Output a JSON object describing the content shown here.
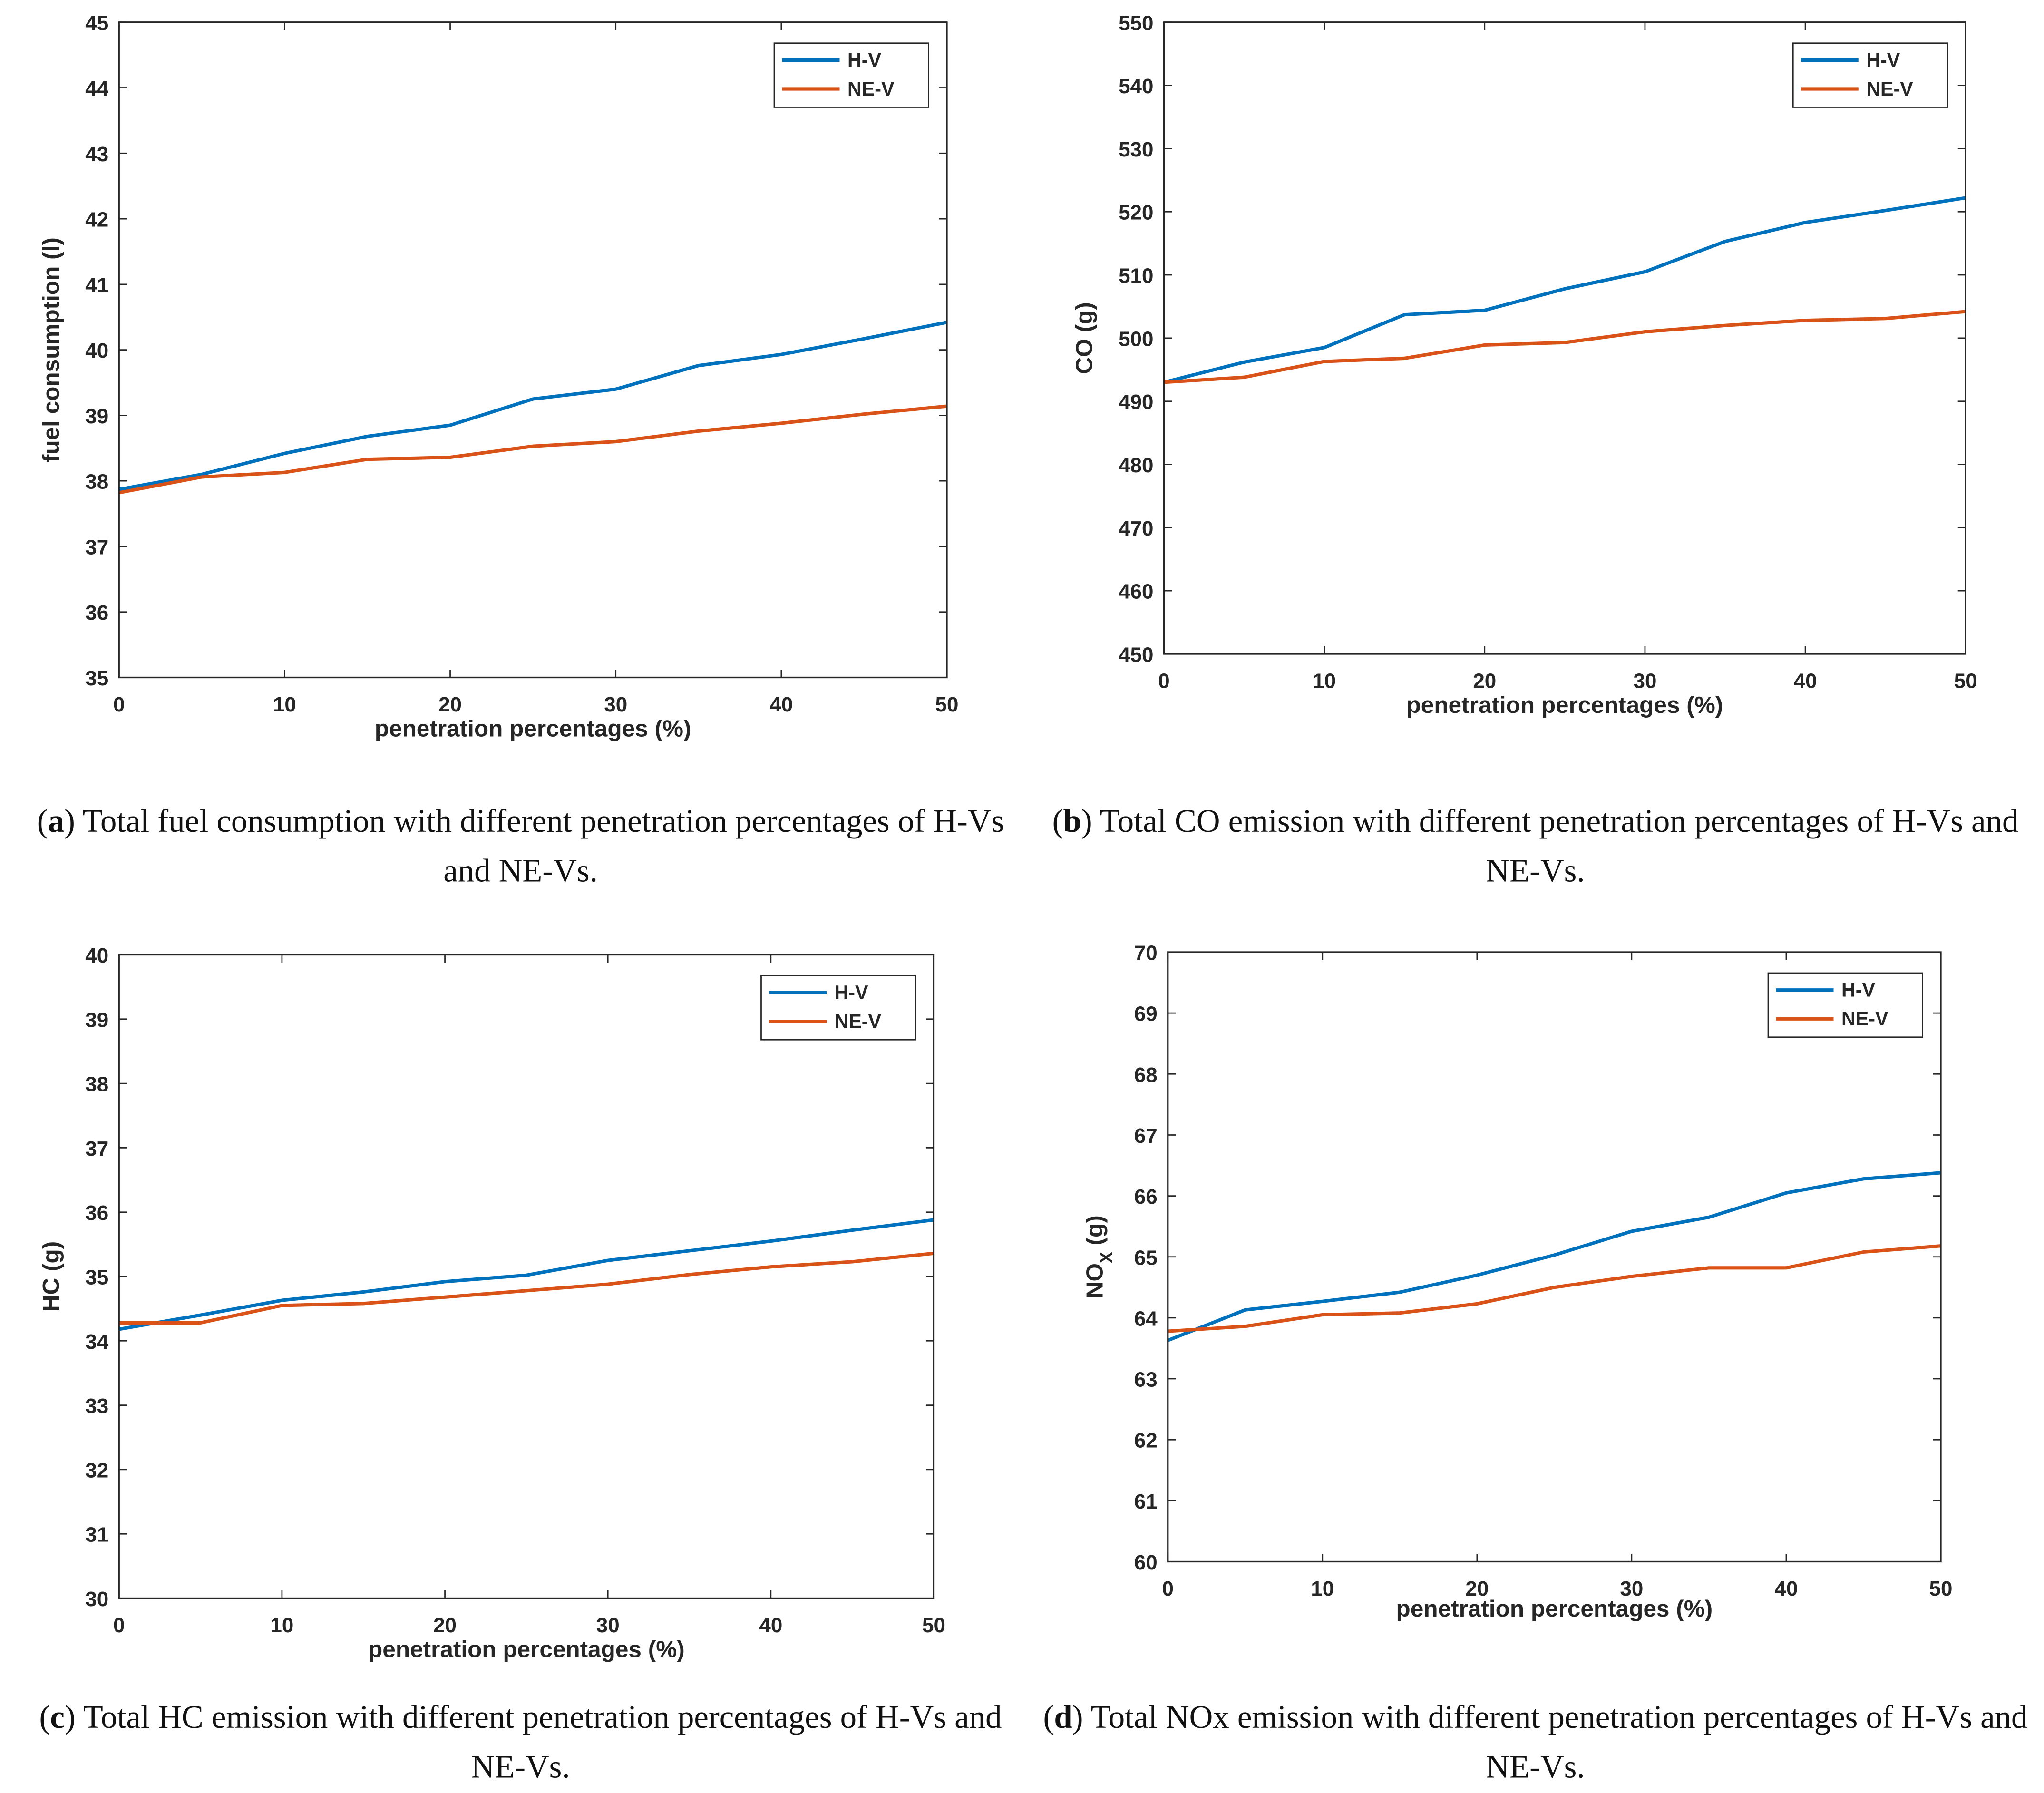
{
  "chart_data": [
    {
      "type": "line",
      "x_label": "penetration percentages (%)",
      "y_label": [
        "fuel consumption (l)"
      ],
      "caption_label": "a",
      "caption": "Total fuel consumption with different penetration percentages of H-Vs and NE-Vs.",
      "x": [
        0,
        5,
        10,
        15,
        20,
        25,
        30,
        35,
        40,
        45,
        50
      ],
      "series": [
        {
          "name": "H-V",
          "color": "#0072bd",
          "values": [
            37.87,
            38.1,
            38.42,
            38.68,
            38.85,
            39.25,
            39.4,
            39.76,
            39.93,
            40.17,
            40.42
          ]
        },
        {
          "name": "NE-V",
          "color": "#d95319",
          "values": [
            37.82,
            38.06,
            38.13,
            38.33,
            38.36,
            38.53,
            38.6,
            38.76,
            38.88,
            39.02,
            39.14
          ]
        }
      ],
      "xlim": [
        0,
        50
      ],
      "xticks": [
        0,
        10,
        20,
        30,
        40,
        50
      ],
      "ylim": [
        35,
        45
      ],
      "yticks": [
        35,
        36,
        37,
        38,
        39,
        40,
        41,
        42,
        43,
        44,
        45
      ],
      "legend": "upper right"
    },
    {
      "type": "line",
      "x_label": "penetration percentages (%)",
      "y_label": [
        "CO (g)"
      ],
      "caption_label": "b",
      "caption": "Total CO emission with different penetration percentages of H-Vs and NE-Vs.",
      "x": [
        0,
        5,
        10,
        15,
        20,
        25,
        30,
        35,
        40,
        45,
        50
      ],
      "series": [
        {
          "name": "H-V",
          "color": "#0072bd",
          "values": [
            493,
            496.2,
            498.5,
            503.7,
            504.4,
            507.8,
            510.5,
            515.3,
            518.3,
            520.2,
            522.2
          ]
        },
        {
          "name": "NE-V",
          "color": "#d95319",
          "values": [
            493,
            493.8,
            496.3,
            496.8,
            498.9,
            499.3,
            501,
            502,
            502.8,
            503.1,
            504.2
          ]
        }
      ],
      "xlim": [
        0,
        50
      ],
      "xticks": [
        0,
        10,
        20,
        30,
        40,
        50
      ],
      "ylim": [
        450,
        550
      ],
      "yticks": [
        450,
        460,
        470,
        480,
        490,
        500,
        510,
        520,
        530,
        540,
        550
      ],
      "legend": "upper right"
    },
    {
      "type": "line",
      "x_label": "penetration percentages (%)",
      "y_label": [
        "HC (g)"
      ],
      "caption_label": "c",
      "caption": "Total HC emission with different penetration percentages of H-Vs and NE-Vs.",
      "x": [
        0,
        5,
        10,
        15,
        20,
        25,
        30,
        35,
        40,
        45,
        50
      ],
      "series": [
        {
          "name": "H-V",
          "color": "#0072bd",
          "values": [
            34.18,
            34.4,
            34.63,
            34.76,
            34.92,
            35.02,
            35.25,
            35.4,
            35.55,
            35.72,
            35.88
          ]
        },
        {
          "name": "NE-V",
          "color": "#d95319",
          "values": [
            34.28,
            34.28,
            34.55,
            34.58,
            34.68,
            34.78,
            34.88,
            35.03,
            35.15,
            35.23,
            35.36
          ]
        }
      ],
      "xlim": [
        0,
        50
      ],
      "xticks": [
        0,
        10,
        20,
        30,
        40,
        50
      ],
      "ylim": [
        30,
        40
      ],
      "yticks": [
        30,
        31,
        32,
        33,
        34,
        35,
        36,
        37,
        38,
        39,
        40
      ],
      "legend": "upper right"
    },
    {
      "type": "line",
      "x_label": "penetration percentages (%)",
      "y_label": [
        "NO",
        "X",
        " (g)"
      ],
      "caption_label": "d",
      "caption": "Total NOx emission with different penetration percentages of H-Vs and NE-Vs.",
      "x": [
        0,
        5,
        10,
        15,
        20,
        25,
        30,
        35,
        40,
        45,
        50
      ],
      "series": [
        {
          "name": "H-V",
          "color": "#0072bd",
          "values": [
            63.63,
            64.13,
            64.27,
            64.42,
            64.7,
            65.03,
            65.42,
            65.65,
            66.05,
            66.28,
            66.38
          ]
        },
        {
          "name": "NE-V",
          "color": "#d95319",
          "values": [
            63.78,
            63.86,
            64.05,
            64.08,
            64.23,
            64.5,
            64.68,
            64.82,
            64.82,
            65.08,
            65.18
          ]
        }
      ],
      "xlim": [
        0,
        50
      ],
      "xticks": [
        0,
        10,
        20,
        30,
        40,
        50
      ],
      "ylim": [
        60,
        70
      ],
      "yticks": [
        60,
        61,
        62,
        63,
        64,
        65,
        66,
        67,
        68,
        69,
        70
      ],
      "legend": "upper right"
    }
  ]
}
